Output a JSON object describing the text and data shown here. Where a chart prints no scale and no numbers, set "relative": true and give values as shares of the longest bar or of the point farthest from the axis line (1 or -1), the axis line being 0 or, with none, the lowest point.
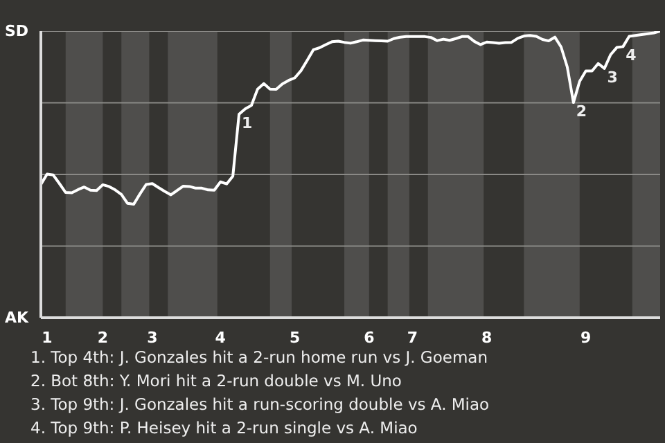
{
  "chart_data": {
    "type": "line",
    "relative": true,
    "categories": [
      null,
      "1",
      null,
      null,
      null,
      null,
      null,
      null,
      null,
      null,
      "2",
      null,
      null,
      null,
      null,
      null,
      null,
      null,
      "3",
      null,
      null,
      null,
      null,
      null,
      null,
      null,
      null,
      null,
      null,
      "4",
      null,
      null,
      null,
      null,
      null,
      null,
      null,
      null,
      null,
      null,
      null,
      "5",
      null,
      null,
      null,
      null,
      null,
      null,
      null,
      null,
      null,
      null,
      null,
      "6",
      null,
      null,
      null,
      null,
      null,
      null,
      "7",
      null,
      null,
      null,
      null,
      null,
      null,
      null,
      null,
      null,
      null,
      null,
      "8",
      null,
      null,
      null,
      null,
      null,
      null,
      null,
      null,
      null,
      null,
      null,
      null,
      null,
      null,
      null,
      "9",
      null,
      null,
      null,
      null,
      null,
      null,
      null,
      null,
      null,
      null,
      null,
      null
    ],
    "series": [
      {
        "color": "#ffffff",
        "values": [
          0.465,
          0.501,
          0.498,
          0.468,
          0.437,
          0.436,
          0.447,
          0.456,
          0.445,
          0.444,
          0.464,
          0.458,
          0.446,
          0.43,
          0.399,
          0.396,
          0.432,
          0.465,
          0.468,
          0.454,
          0.441,
          0.429,
          0.444,
          0.459,
          0.458,
          0.452,
          0.452,
          0.446,
          0.445,
          0.474,
          0.467,
          0.494,
          0.71,
          0.729,
          0.741,
          0.798,
          0.817,
          0.798,
          0.797,
          0.816,
          0.828,
          0.837,
          0.862,
          0.898,
          0.935,
          0.942,
          0.953,
          0.963,
          0.965,
          0.961,
          0.958,
          0.963,
          0.969,
          0.968,
          0.967,
          0.966,
          0.965,
          0.974,
          0.979,
          0.981,
          0.981,
          0.981,
          0.981,
          0.978,
          0.967,
          0.972,
          0.968,
          0.974,
          0.981,
          0.981,
          0.964,
          0.953,
          0.962,
          0.96,
          0.958,
          0.96,
          0.961,
          0.975,
          0.983,
          0.985,
          0.982,
          0.971,
          0.966,
          0.979,
          0.945,
          0.875,
          0.751,
          0.825,
          0.861,
          0.861,
          0.887,
          0.87,
          0.918,
          0.943,
          0.946,
          0.982,
          0.985,
          0.988,
          0.991,
          0.994,
          1
        ]
      }
    ],
    "ref_lines": [
      {
        "axis": "y",
        "value": 0.25,
        "color": "#8a8986"
      },
      {
        "axis": "y",
        "value": 0.5,
        "color": "#8a8986"
      },
      {
        "axis": "y",
        "value": 0.75,
        "color": "#8a8986"
      },
      {
        "axis": "y",
        "value": 1,
        "color": "#8a8986"
      }
    ],
    "marker": "none",
    "annotations": [
      "SD",
      "AK",
      {
        "text": "1",
        "y": 0.71
      },
      {
        "text": "2",
        "y": 0.751
      },
      {
        "text": "3",
        "y": 0.87
      },
      {
        "text": "4",
        "y": 0.946
      },
      "1. Top 4th: J. Gonzales hit a 2-run home run vs J. Goeman",
      "2. Bot 8th: Y. Mori hit a 2-run double vs M. Uno",
      "3. Top 9th: J. Gonzales hit a run-scoring double vs A. Miao",
      "4. Top 9th: P. Heisey hit a 2-run single vs A. Miao"
    ]
  }
}
